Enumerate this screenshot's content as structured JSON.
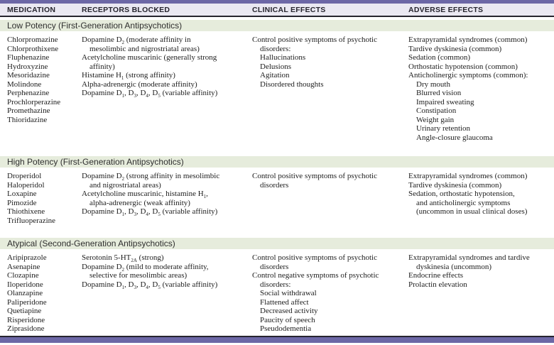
{
  "colors": {
    "accent": "#6c67a6",
    "headerBg": "#eae8f2",
    "bandGreen": "#e6ecdc",
    "rule": "#26242e",
    "text": "#1c1c1c"
  },
  "table": {
    "columns": [
      "MEDICATION",
      "RECEPTORS BLOCKED",
      "CLINICAL EFFECTS",
      "ADVERSE EFFECTS"
    ],
    "sections": [
      {
        "title": "Low Potency (First-Generation Antipsychotics)",
        "medications": "Chlorpromazine\nChlorprothixene\nFluphenazine\nHydroxyzine\nMesoridazine\nMolindone\nPerphenazine\nProchlorperazine\nPromethazine\nThioridazine",
        "receptors": "Dopamine D~2~ (moderate affinity in\n    mesolimbic and nigrostriatal areas)\nAcetylcholine muscarinic (generally strong\n    affinity)\nHistamine H~1~ (strong affinity)\nAlpha-adrenergic (moderate affinity)\nDopamine D~1~, D~3~, D~4~, D~5~ (variable affinity)",
        "clinical": "Control positive symptoms of psychotic\n    disorders:\n    Hallucinations\n    Delusions\n    Agitation\n    Disordered thoughts",
        "adverse": "Extrapyramidal syndromes (common)\nTardive dyskinesia (common)\nSedation (common)\nOrthostatic hypotension (common)\nAnticholinergic symptoms (common):\n    Dry mouth\n    Blurred vision\n    Impaired sweating\n    Constipation\n    Weight gain\n    Urinary retention\n    Angle-closure glaucoma"
      },
      {
        "title": "High Potency (First-Generation Antipsychotics)",
        "medications": "Droperidol\nHaloperidol\nLoxapine\nPimozide\nThiothixene\nTrifluoperazine",
        "receptors": "Dopamine D~2~ (strong affinity in mesolimbic\n    and nigrostriatal areas)\nAcetylcholine muscarinic, histamine H~1~,\n    alpha-adrenergic (weak affinity)\nDopamine D~1~, D~3~, D~4~, D~5~ (variable affinity)",
        "clinical": "Control positive symptoms of psychotic\n    disorders",
        "adverse": "Extrapyramidal syndromes (common)\nTardive dyskinesia (common)\nSedation, orthostatic hypotension,\n    and anticholinergic symptoms\n    (uncommon in usual clinical doses)"
      },
      {
        "title": "Atypical (Second-Generation Antipsychotics)",
        "medications": "Aripiprazole\nAsenapine\nClozapine\nIloperidone\nOlanzapine\nPaliperidone\nQuetiapine\nRisperidone\nZiprasidone",
        "receptors": "Serotonin 5-HT~2A~ (strong)\nDopamine D~2~ (mild to moderate affinity,\n    selective for mesolimbic areas)\nDopamine D~1~, D~3~, D~4~, D~5~ (variable affinity)",
        "clinical": "Control positive symptoms of psychotic\n    disorders\nControl negative symptoms of psychotic\n    disorders:\n    Social withdrawal\n    Flattened affect\n    Decreased activity\n    Paucity of speech\n    Pseudodementia",
        "adverse": "Extrapyramidal syndromes and tardive\n    dyskinesia (uncommon)\nEndocrine effects\nProlactin elevation"
      }
    ]
  }
}
